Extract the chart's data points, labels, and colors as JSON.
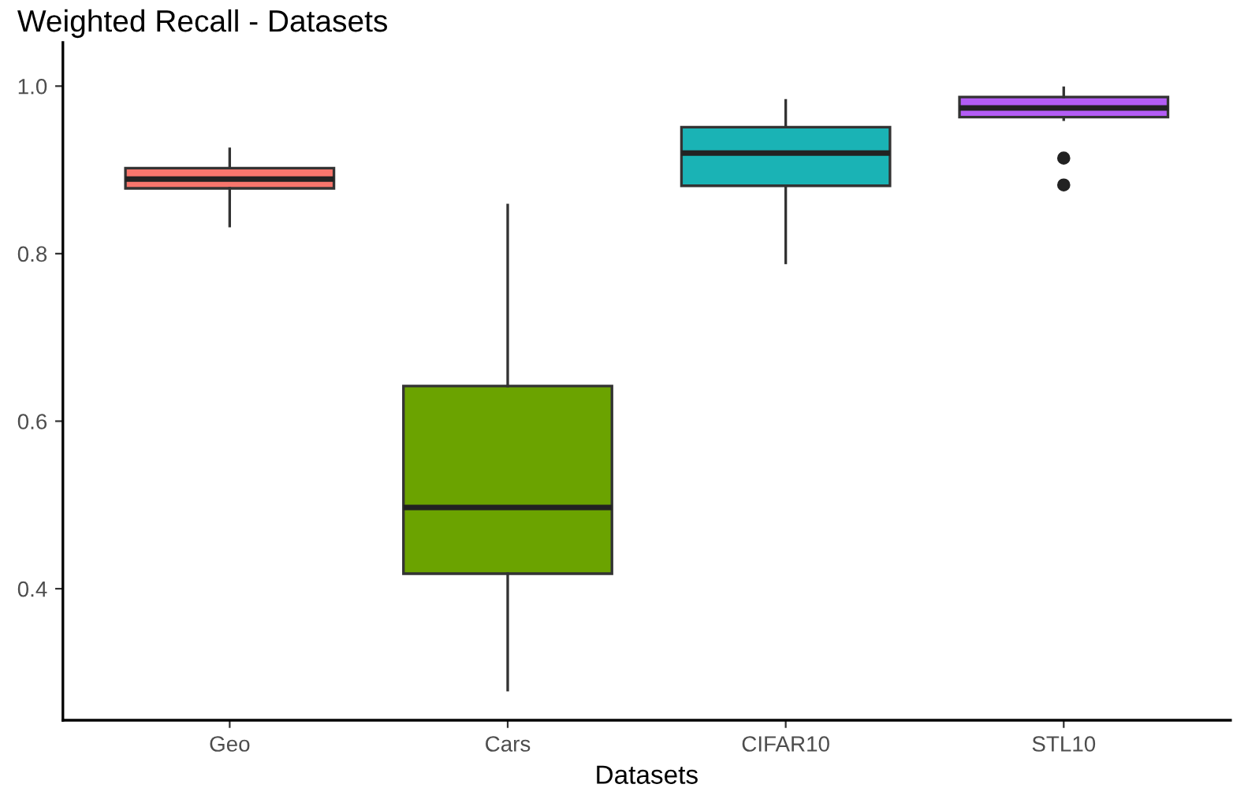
{
  "chart_data": {
    "type": "box",
    "title": "Weighted Recall - Datasets",
    "xlabel": "Datasets",
    "categories": [
      "Geo",
      "Cars",
      "CIFAR10",
      "STL10"
    ],
    "colors": [
      "#f8766d",
      "#6ba300",
      "#1ab3b5",
      "#b35cf5"
    ],
    "boxes": [
      {
        "low": 0.833,
        "q1": 0.878,
        "median": 0.889,
        "q3": 0.902,
        "high": 0.925
      },
      {
        "low": 0.279,
        "q1": 0.418,
        "median": 0.497,
        "q3": 0.642,
        "high": 0.858
      },
      {
        "low": 0.789,
        "q1": 0.881,
        "median": 0.92,
        "q3": 0.951,
        "high": 0.983
      },
      {
        "low": 0.96,
        "q1": 0.963,
        "median": 0.974,
        "q3": 0.987,
        "high": 0.998,
        "outliers": [
          0.914,
          0.882
        ]
      }
    ],
    "ylim": [
      0.243,
      1.052
    ],
    "yticks": [
      0.4,
      0.6,
      0.8,
      {
        "value": 1,
        "label": "1.0"
      }
    ],
    "grid": false,
    "legend": false
  }
}
